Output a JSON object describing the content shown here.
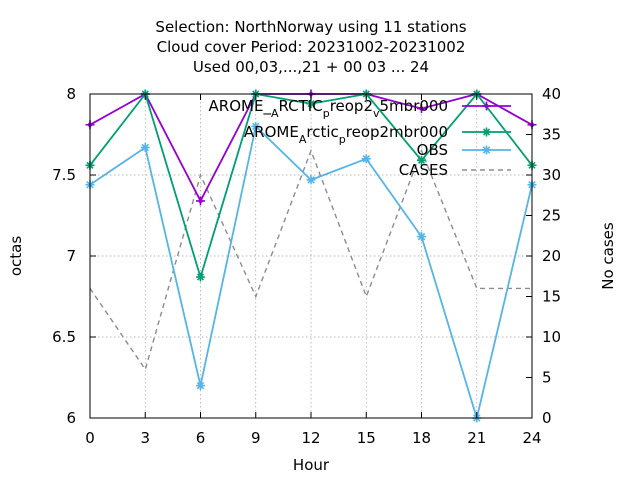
{
  "chart_data": {
    "type": "line",
    "title_lines": [
      "Selection: NorthNorway using    11 stations",
      "Cloud cover   Period: 20231002-20231002",
      "Used  00,03,...,21  + 00 03 ... 24"
    ],
    "xlabel": "Hour",
    "ylabel": "octas",
    "y2label": "No cases",
    "x": [
      0,
      3,
      6,
      9,
      12,
      15,
      18,
      21,
      24
    ],
    "xlim": [
      0,
      24
    ],
    "ylim": [
      6,
      8
    ],
    "y2lim": [
      0,
      40
    ],
    "xticks": [
      "0",
      "3",
      "6",
      "9",
      "12",
      "15",
      "18",
      "21",
      "24"
    ],
    "yticks": [
      "6",
      "6.5",
      "7",
      "7.5",
      "8"
    ],
    "y2ticks": [
      "0",
      "5",
      "10",
      "15",
      "20",
      "25",
      "30",
      "35",
      "40"
    ],
    "grid": true,
    "legend_position": "top-right",
    "series": [
      {
        "name_parts": [
          "AROME_",
          "A",
          "RCTIC",
          "p",
          "reop2",
          "v",
          "5mbr000"
        ],
        "color": "#9400d3",
        "marker": "plus",
        "axis": "left",
        "values": [
          7.81,
          8.0,
          7.34,
          8.0,
          8.0,
          8.0,
          7.91,
          8.0,
          7.81
        ]
      },
      {
        "name_parts": [
          "AROME",
          "A",
          "rctic",
          "p",
          "reop2mbr000"
        ],
        "color": "#009e73",
        "marker": "cross",
        "axis": "left",
        "values": [
          7.56,
          8.0,
          6.87,
          8.0,
          7.94,
          8.0,
          7.59,
          8.0,
          7.56
        ]
      },
      {
        "name": "OBS",
        "color": "#56b4e9",
        "marker": "star",
        "axis": "left",
        "values": [
          7.44,
          7.67,
          6.2,
          7.8,
          7.47,
          7.6,
          7.12,
          6.0,
          7.44
        ]
      },
      {
        "name": "CASES",
        "color": "#8c8c8c",
        "dashed": true,
        "axis": "right",
        "values": [
          16,
          6,
          30,
          15,
          33,
          15,
          33,
          16,
          16
        ]
      }
    ]
  }
}
